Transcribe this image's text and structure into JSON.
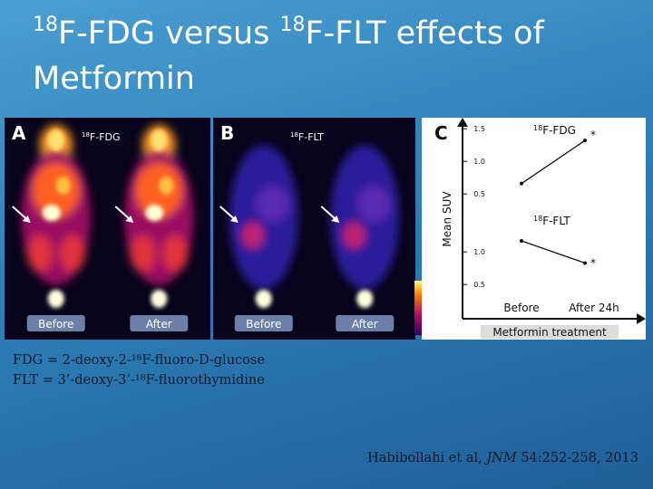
{
  "title": {
    "sup_a": "18",
    "text_a": "F-FDG versus ",
    "sup_b": "18",
    "text_b": "F-FLT effects of Metformin"
  },
  "panels": [
    {
      "label": "A",
      "tracer_sup": "18",
      "tracer": "F-FDG",
      "images": [
        "Before",
        "After"
      ]
    },
    {
      "label": "B",
      "tracer_sup": "18",
      "tracer": "F-FLT",
      "images": [
        "Before",
        "After"
      ]
    }
  ],
  "panel_c": {
    "type": "line",
    "label": "C",
    "y_label": "Mean SUV",
    "x_categories": [
      "Before",
      "After 24h"
    ],
    "x_label": "Metformin treatment",
    "ylim": [
      0.35,
      1.6
    ],
    "charts": [
      {
        "title_sup": "18",
        "title": "F-FDG",
        "yticks": [
          1.5,
          {
            "value": 1,
            "label": "1.0"
          },
          0.5
        ],
        "values": [
          0.66,
          1.32
        ],
        "annotation": "*"
      },
      {
        "title_sup": "18",
        "title": "F-FLT",
        "yticks": [
          {
            "value": 1,
            "label": "1.0"
          },
          0.5
        ],
        "values": [
          1.17,
          0.83
        ],
        "annotation": "*"
      }
    ]
  },
  "captions": [
    "FDG = 2-deoxy-2-¹⁸F-fluoro-D-glucose",
    "FLT = 3’-deoxy-3’-¹⁸F-fluorothymidine"
  ],
  "citation": {
    "authors": "Habibollahi et al, ",
    "journal": "JNM",
    "details": " 54:252-258, 2013"
  }
}
